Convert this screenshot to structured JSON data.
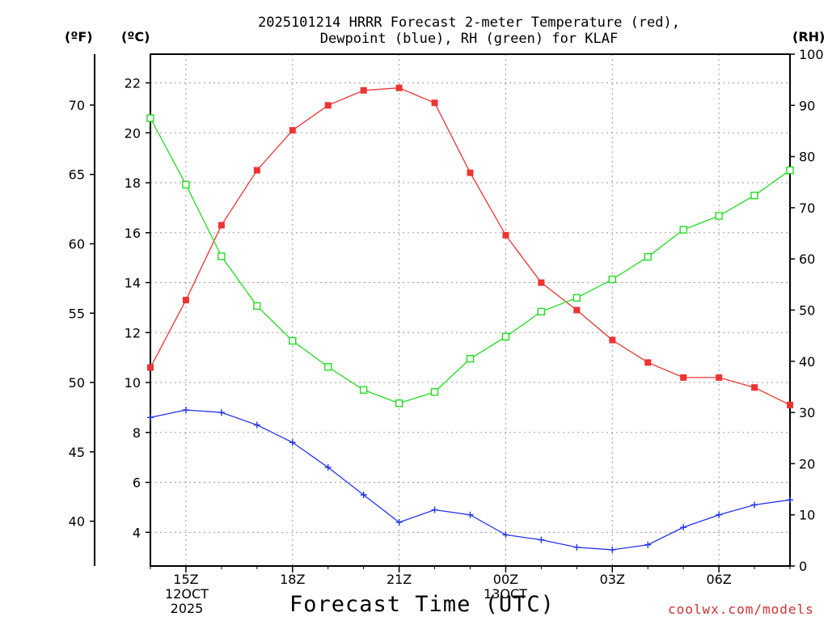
{
  "header": {
    "title_line1": "2025101214 HRRR Forecast 2-meter Temperature (red),",
    "title_line2": "Dewpoint (blue), RH (green) for KLAF"
  },
  "units": {
    "fahrenheit": "(ºF)",
    "celsius": "(ºC)",
    "rh": "(RH)"
  },
  "footer": {
    "xlabel": "Forecast Time (UTC)",
    "credit": "coolwx.com/models",
    "date1": [
      "12OCT",
      "2025"
    ],
    "date2": [
      "13OCT"
    ]
  },
  "colors": {
    "temperature": "#ee3333",
    "dewpoint": "#2233ee",
    "rh": "#22dd22",
    "grid": "#999999"
  },
  "chart_data": {
    "type": "line",
    "title": "2025101214 HRRR Forecast 2-meter Temperature (red), Dewpoint (blue), RH (green) for KLAF",
    "xlabel": "Forecast Time (UTC)",
    "x_hours_utc": [
      14,
      15,
      16,
      17,
      18,
      19,
      20,
      21,
      22,
      23,
      24,
      25,
      26,
      27,
      28,
      29,
      30,
      31,
      32
    ],
    "x_tick_labels": [
      {
        "hour": 15,
        "label": "15Z"
      },
      {
        "hour": 18,
        "label": "18Z"
      },
      {
        "hour": 21,
        "label": "21Z"
      },
      {
        "hour": 24,
        "label": "00Z"
      },
      {
        "hour": 27,
        "label": "03Z"
      },
      {
        "hour": 30,
        "label": "06Z"
      }
    ],
    "x_range": [
      14,
      32
    ],
    "left_axis_celsius": {
      "range": [
        2.65,
        23.15
      ],
      "ticks": [
        4,
        6,
        8,
        10,
        12,
        14,
        16,
        18,
        20,
        22
      ]
    },
    "left_axis_fahrenheit": {
      "range": [
        36.77,
        73.67
      ],
      "ticks": [
        40,
        45,
        50,
        55,
        60,
        65,
        70
      ]
    },
    "right_axis_rh": {
      "range": [
        0,
        100
      ],
      "ticks": [
        0,
        10,
        20,
        30,
        40,
        50,
        60,
        70,
        80,
        90,
        100
      ]
    },
    "grid": true,
    "series": [
      {
        "name": "2-meter Temperature",
        "axis": "celsius",
        "color": "temperature",
        "marker": "filled-square",
        "values": [
          10.6,
          13.3,
          16.3,
          18.5,
          20.1,
          21.1,
          21.7,
          21.8,
          21.2,
          18.4,
          15.9,
          14.0,
          12.9,
          11.7,
          10.8,
          10.2,
          10.2,
          9.8,
          9.1
        ]
      },
      {
        "name": "Dewpoint",
        "axis": "celsius",
        "color": "dewpoint",
        "marker": "plus",
        "values": [
          8.6,
          8.9,
          8.8,
          8.3,
          7.6,
          6.6,
          5.5,
          4.4,
          4.9,
          4.7,
          3.9,
          3.7,
          3.4,
          3.3,
          3.5,
          4.2,
          4.7,
          5.1,
          5.3
        ]
      },
      {
        "name": "Relative Humidity",
        "axis": "rh",
        "color": "rh",
        "marker": "open-square",
        "values": [
          87.5,
          74.5,
          60.5,
          50.8,
          44.0,
          38.9,
          34.4,
          31.8,
          34.0,
          40.5,
          44.8,
          49.7,
          52.4,
          56.0,
          60.4,
          65.7,
          68.4,
          72.4,
          77.3
        ]
      }
    ]
  }
}
